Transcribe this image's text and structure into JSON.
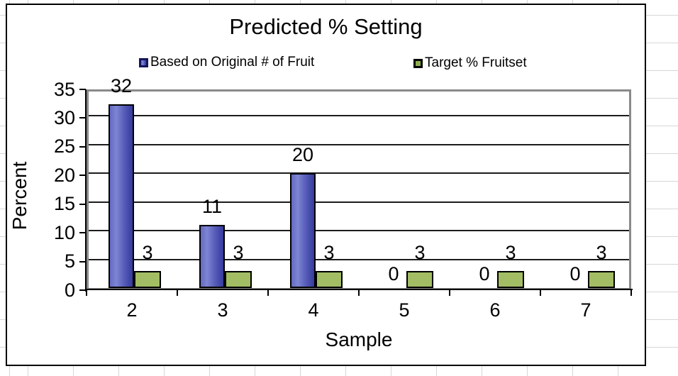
{
  "sheet": {
    "gridline_color": "#d6d6d6"
  },
  "chart_data": {
    "type": "bar",
    "title": "Predicted % Setting",
    "xlabel": "Sample",
    "ylabel": "Percent",
    "categories": [
      "2",
      "3",
      "4",
      "5",
      "6",
      "7"
    ],
    "series": [
      {
        "name": "Based on Original # of Fruit",
        "values": [
          32,
          11,
          20,
          0,
          0,
          0
        ],
        "data_labels": [
          "32",
          "11",
          "20",
          "0",
          "0",
          "0"
        ],
        "fill": "gradient",
        "gradient": [
          "#646bc3",
          "#7d85d4",
          "#5157b4",
          "#363b9d"
        ],
        "border_color": "#000000"
      },
      {
        "name": "Target % Fruitset",
        "values": [
          3,
          3,
          3,
          3,
          3,
          3
        ],
        "data_labels": [
          "3",
          "3",
          "3",
          "3",
          "3",
          "3"
        ],
        "fill": "solid",
        "color": "#a2bd63",
        "border_color": "#000000"
      }
    ],
    "ylim": [
      0,
      35
    ],
    "yticks": [
      0,
      5,
      10,
      15,
      20,
      25,
      30,
      35
    ],
    "grid": true,
    "legend_position": "top",
    "plot_border_color": "#8a8a8a"
  }
}
